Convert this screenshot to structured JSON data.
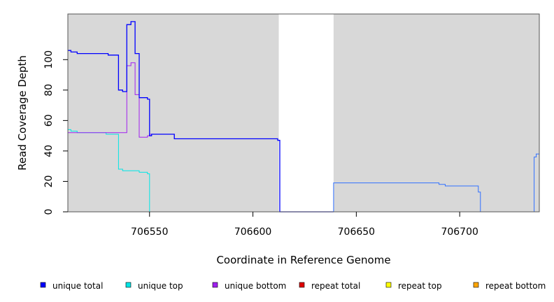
{
  "chart_data": {
    "type": "line",
    "xlabel": "Coordinate in Reference Genome",
    "ylabel": "Read Coverage Depth",
    "xlim": [
      706510.5,
      706738.5
    ],
    "ylim": [
      0,
      130
    ],
    "x_ticks": [
      706550,
      706600,
      706650,
      706700
    ],
    "y_ticks": [
      0,
      20,
      40,
      60,
      80,
      100
    ],
    "shaded_regions": [
      {
        "x": [
          706510.5,
          706612.5
        ],
        "color": "#d8d8d8"
      },
      {
        "x": [
          706639,
          706738.5
        ],
        "color": "#d8d8d8"
      }
    ],
    "legend_position": "bottom",
    "series": [
      {
        "name": "unique total",
        "color": "#0000ff",
        "points": [
          [
            706510.5,
            106
          ],
          [
            706512,
            106
          ],
          [
            706512,
            105
          ],
          [
            706515,
            105
          ],
          [
            706515,
            104
          ],
          [
            706530,
            104
          ],
          [
            706530,
            103
          ],
          [
            706535,
            103
          ],
          [
            706535,
            80
          ],
          [
            706537,
            80
          ],
          [
            706537,
            79
          ],
          [
            706539,
            79
          ],
          [
            706539,
            123
          ],
          [
            706541,
            123
          ],
          [
            706541,
            125
          ],
          [
            706543,
            125
          ],
          [
            706543,
            104
          ],
          [
            706545,
            104
          ],
          [
            706545,
            75
          ],
          [
            706549,
            75
          ],
          [
            706549,
            74
          ],
          [
            706550,
            74
          ],
          [
            706550,
            50
          ],
          [
            706551,
            50
          ],
          [
            706551,
            51
          ],
          [
            706562,
            51
          ],
          [
            706562,
            48
          ],
          [
            706612,
            48
          ],
          [
            706612,
            47
          ],
          [
            706613,
            47
          ],
          [
            706613,
            0
          ],
          [
            706639,
            0
          ]
        ]
      },
      {
        "name": "unique top",
        "color": "#00e5e5",
        "points": [
          [
            706510.5,
            54
          ],
          [
            706512,
            54
          ],
          [
            706512,
            53
          ],
          [
            706515,
            53
          ],
          [
            706515,
            52
          ],
          [
            706529,
            52
          ],
          [
            706529,
            51
          ],
          [
            706535,
            51
          ],
          [
            706535,
            28
          ],
          [
            706537,
            28
          ],
          [
            706537,
            27
          ],
          [
            706542,
            27
          ],
          [
            706542,
            27
          ],
          [
            706545,
            27
          ],
          [
            706545,
            26
          ],
          [
            706549,
            26
          ],
          [
            706549,
            25
          ],
          [
            706550,
            25
          ],
          [
            706550,
            0
          ],
          [
            706613,
            0
          ]
        ]
      },
      {
        "name": "unique bottom",
        "color": "#a020f0",
        "points": [
          [
            706510.5,
            52
          ],
          [
            706539,
            52
          ],
          [
            706539,
            96
          ],
          [
            706541,
            96
          ],
          [
            706541,
            98
          ],
          [
            706543,
            98
          ],
          [
            706543,
            77
          ],
          [
            706545,
            77
          ],
          [
            706545,
            49
          ],
          [
            706549,
            49
          ],
          [
            706549,
            50
          ],
          [
            706550,
            50
          ],
          [
            706550,
            51
          ],
          [
            706562,
            51
          ],
          [
            706562,
            48
          ],
          [
            706612,
            48
          ],
          [
            706612,
            47
          ],
          [
            706613,
            47
          ],
          [
            706613,
            0
          ],
          [
            706639,
            0
          ]
        ]
      },
      {
        "name": "repeat total",
        "color": "#e00000",
        "points": [
          [
            706510.5,
            0
          ],
          [
            706738.5,
            0
          ]
        ]
      },
      {
        "name": "repeat top",
        "color": "#ffff00",
        "points": [
          [
            706510.5,
            0
          ],
          [
            706738.5,
            0
          ]
        ]
      },
      {
        "name": "repeat bottom",
        "color": "#ffa500",
        "points": [
          [
            706510.5,
            0
          ],
          [
            706738.5,
            0
          ]
        ]
      },
      {
        "name": "",
        "color": "#3070ff",
        "points": [
          [
            706639,
            0
          ],
          [
            706639,
            19
          ],
          [
            706690,
            19
          ],
          [
            706690,
            18
          ],
          [
            706693,
            18
          ],
          [
            706693,
            17
          ],
          [
            706709,
            17
          ],
          [
            706709,
            13
          ],
          [
            706710,
            13
          ],
          [
            706710,
            0
          ],
          [
            706736,
            0
          ],
          [
            706736,
            36
          ],
          [
            706737,
            36
          ],
          [
            706737,
            38
          ],
          [
            706738.5,
            38
          ]
        ]
      }
    ]
  }
}
